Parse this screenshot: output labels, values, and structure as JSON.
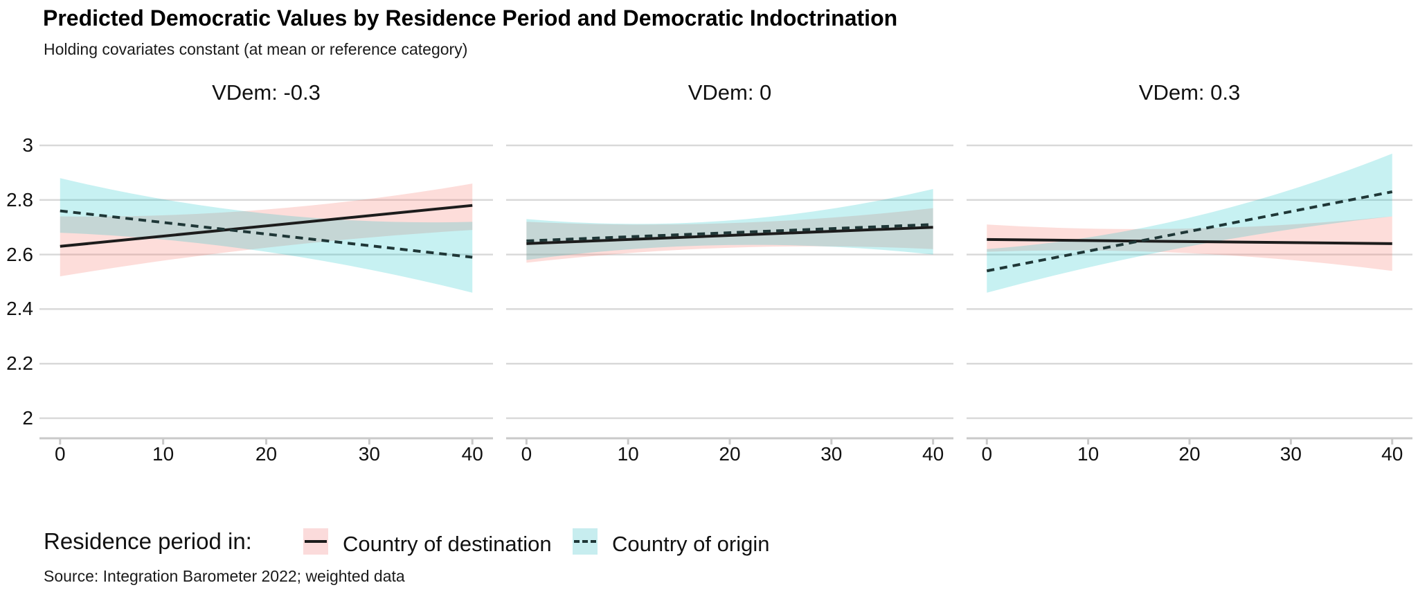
{
  "header": {
    "title": "Predicted Democratic Values by Residence Period and Democratic Indoctrination",
    "subtitle": "Holding covariates constant (at mean or reference category)"
  },
  "caption": "Source: Integration Barometer 2022; weighted data",
  "legend": {
    "title": "Residence period in:",
    "items": [
      {
        "label": "Country of destination",
        "swatch_fill": "#fbdbdb",
        "line_color": "#1c1c1c",
        "line_style": "solid"
      },
      {
        "label": "Country of origin",
        "swatch_fill": "#c7edef",
        "line_color": "#1f3737",
        "line_style": "dashed"
      }
    ]
  },
  "chart_data": {
    "type": "line",
    "title": "Predicted Democratic Values by Residence Period and Democratic Indoctrination",
    "subtitle": "Holding covariates constant (at mean or reference category)",
    "xlabel": "",
    "ylabel": "",
    "x": {
      "ticks": [
        0,
        10,
        20,
        30,
        40
      ],
      "range": [
        0,
        40
      ]
    },
    "y": {
      "ticks": [
        2,
        2.2,
        2.4,
        2.6,
        2.8,
        3
      ],
      "range": [
        1.95,
        3.05
      ]
    },
    "grid": "horizontal-only",
    "legend_position": "bottom",
    "facets": [
      {
        "label": "VDem: -0.3",
        "series": [
          {
            "name": "Country of destination",
            "style": "solid",
            "line": {
              "x": [
                0,
                40
              ],
              "y": [
                2.63,
                2.78
              ]
            },
            "ci": {
              "x": [
                0,
                20,
                40
              ],
              "lower": [
                2.52,
                2.625,
                2.69
              ],
              "upper": [
                2.74,
                2.765,
                2.86
              ]
            }
          },
          {
            "name": "Country of origin",
            "style": "dashed",
            "line": {
              "x": [
                0,
                40
              ],
              "y": [
                2.76,
                2.59
              ]
            },
            "ci": {
              "x": [
                0,
                20,
                40
              ],
              "lower": [
                2.68,
                2.61,
                2.46
              ],
              "upper": [
                2.88,
                2.75,
                2.72
              ]
            }
          }
        ]
      },
      {
        "label": "VDem: 0",
        "series": [
          {
            "name": "Country of destination",
            "style": "solid",
            "line": {
              "x": [
                0,
                40
              ],
              "y": [
                2.64,
                2.7
              ]
            },
            "ci": {
              "x": [
                0,
                20,
                40
              ],
              "lower": [
                2.57,
                2.625,
                2.62
              ],
              "upper": [
                2.72,
                2.715,
                2.77
              ]
            }
          },
          {
            "name": "Country of origin",
            "style": "dashed",
            "line": {
              "x": [
                0,
                40
              ],
              "y": [
                2.65,
                2.71
              ]
            },
            "ci": {
              "x": [
                0,
                20,
                40
              ],
              "lower": [
                2.58,
                2.635,
                2.6
              ],
              "upper": [
                2.73,
                2.725,
                2.84
              ]
            }
          }
        ]
      },
      {
        "label": "VDem: 0.3",
        "series": [
          {
            "name": "Country of destination",
            "style": "solid",
            "line": {
              "x": [
                0,
                40
              ],
              "y": [
                2.655,
                2.64
              ]
            },
            "ci": {
              "x": [
                0,
                20,
                40
              ],
              "lower": [
                2.61,
                2.605,
                2.54
              ],
              "upper": [
                2.71,
                2.695,
                2.74
              ]
            }
          },
          {
            "name": "Country of origin",
            "style": "dashed",
            "line": {
              "x": [
                0,
                40
              ],
              "y": [
                2.54,
                2.83
              ]
            },
            "ci": {
              "x": [
                0,
                20,
                40
              ],
              "lower": [
                2.46,
                2.63,
                2.74
              ],
              "upper": [
                2.62,
                2.735,
                2.97
              ]
            }
          }
        ]
      }
    ],
    "style": {
      "destination_line": "#1c1c1c",
      "destination_fill": "rgba(248,118,109,0.25)",
      "origin_line": "#1f3737",
      "origin_fill": "rgba(0,191,196,0.22)",
      "gridline": "#d9d9d9",
      "axis": "#c9c9c9",
      "dash_pattern": "11 8"
    }
  }
}
